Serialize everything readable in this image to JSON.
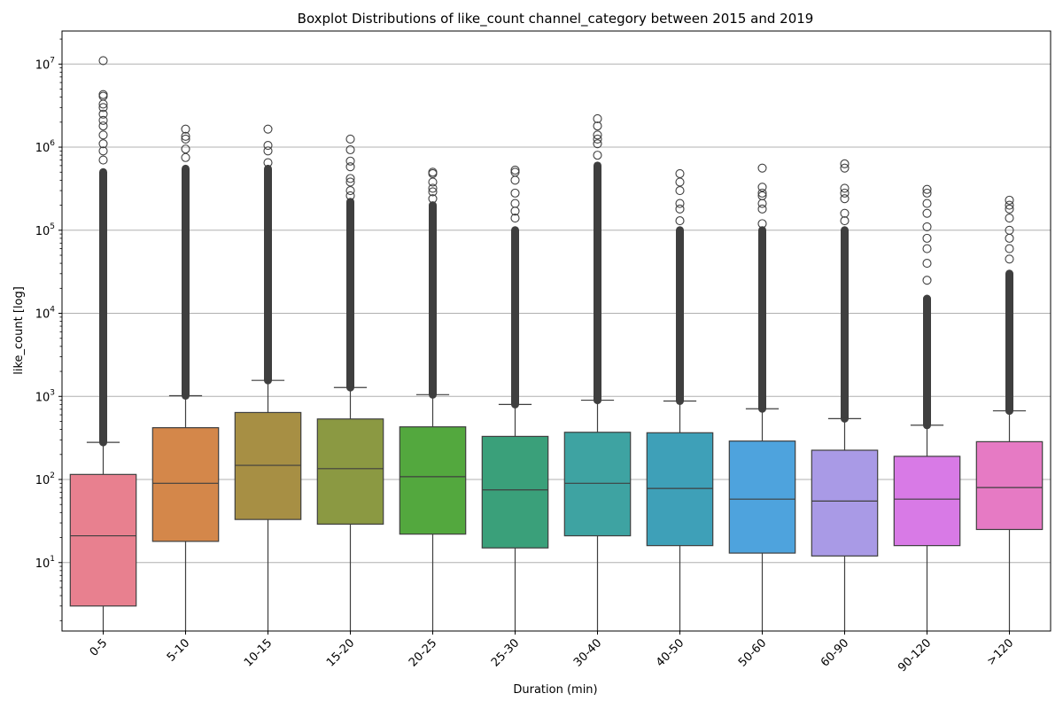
{
  "chart_data": {
    "type": "box",
    "title": "Boxplot Distributions of like_count channel_category between 2015 and 2019",
    "xlabel": "Duration (min)",
    "ylabel": "like_count [log]",
    "yscale": "log",
    "ylim": [
      1.5,
      25000000
    ],
    "grid": "y-major",
    "yticks": [
      {
        "value": 10,
        "base": "10",
        "exp": "1"
      },
      {
        "value": 100,
        "base": "10",
        "exp": "2"
      },
      {
        "value": 1000,
        "base": "10",
        "exp": "3"
      },
      {
        "value": 10000,
        "base": "10",
        "exp": "4"
      },
      {
        "value": 100000,
        "base": "10",
        "exp": "5"
      },
      {
        "value": 1000000,
        "base": "10",
        "exp": "6"
      },
      {
        "value": 10000000,
        "base": "10",
        "exp": "7"
      }
    ],
    "categories": [
      "0-5",
      "5-10",
      "10-15",
      "15-20",
      "20-25",
      "25-30",
      "30-40",
      "40-50",
      "50-60",
      "60-90",
      "90-120",
      ">120"
    ],
    "colors": [
      "#e8808f",
      "#d4874a",
      "#a78f44",
      "#8b9942",
      "#53a83e",
      "#3aa07a",
      "#3ea3a2",
      "#3ea0b8",
      "#4ea3dd",
      "#a99ae6",
      "#d87ae6",
      "#e67ac4"
    ],
    "boxes": [
      {
        "category": "0-5",
        "whislo": 1,
        "q1": 3,
        "med": 21,
        "q3": 115,
        "whishi": 280,
        "flier_min": 280,
        "flier_max": 500000,
        "outliers": [
          700000,
          900000,
          1100000,
          1400000,
          1800000,
          2100000,
          2500000,
          3000000,
          3300000,
          4100000,
          4300000,
          11000000
        ]
      },
      {
        "category": "5-10",
        "whislo": 1,
        "q1": 18,
        "med": 90,
        "q3": 420,
        "whishi": 1020,
        "flier_min": 1020,
        "flier_max": 550000,
        "outliers": [
          750000,
          950000,
          1250000,
          1350000,
          1650000
        ]
      },
      {
        "category": "10-15",
        "whislo": 1,
        "q1": 33,
        "med": 148,
        "q3": 640,
        "whishi": 1560,
        "flier_min": 1560,
        "flier_max": 550000,
        "outliers": [
          650000,
          900000,
          1050000,
          1650000
        ]
      },
      {
        "category": "15-20",
        "whislo": 1,
        "q1": 29,
        "med": 135,
        "q3": 535,
        "whishi": 1280,
        "flier_min": 1280,
        "flier_max": 220000,
        "outliers": [
          260000,
          300000,
          380000,
          420000,
          580000,
          680000,
          930000,
          1250000
        ]
      },
      {
        "category": "20-25",
        "whislo": 1,
        "q1": 22,
        "med": 108,
        "q3": 430,
        "whishi": 1050,
        "flier_min": 1050,
        "flier_max": 200000,
        "outliers": [
          240000,
          290000,
          320000,
          380000,
          480000,
          500000
        ]
      },
      {
        "category": "25-30",
        "whislo": 1,
        "q1": 15,
        "med": 75,
        "q3": 330,
        "whishi": 800,
        "flier_min": 800,
        "flier_max": 100000,
        "outliers": [
          140000,
          170000,
          210000,
          280000,
          400000,
          500000,
          530000
        ]
      },
      {
        "category": "30-40",
        "whislo": 1,
        "q1": 21,
        "med": 90,
        "q3": 370,
        "whishi": 900,
        "flier_min": 900,
        "flier_max": 600000,
        "outliers": [
          800000,
          1100000,
          1250000,
          1400000,
          1800000,
          2200000
        ]
      },
      {
        "category": "40-50",
        "whislo": 1,
        "q1": 16,
        "med": 78,
        "q3": 365,
        "whishi": 880,
        "flier_min": 880,
        "flier_max": 100000,
        "outliers": [
          130000,
          180000,
          210000,
          300000,
          380000,
          480000
        ]
      },
      {
        "category": "50-60",
        "whislo": 1,
        "q1": 13,
        "med": 58,
        "q3": 290,
        "whishi": 710,
        "flier_min": 710,
        "flier_max": 100000,
        "outliers": [
          120000,
          180000,
          210000,
          260000,
          280000,
          330000,
          560000
        ]
      },
      {
        "category": "60-90",
        "whislo": 1,
        "q1": 12,
        "med": 55,
        "q3": 225,
        "whishi": 540,
        "flier_min": 540,
        "flier_max": 100000,
        "outliers": [
          130000,
          160000,
          240000,
          280000,
          320000,
          560000,
          630000
        ]
      },
      {
        "category": "90-120",
        "whislo": 1,
        "q1": 16,
        "med": 58,
        "q3": 190,
        "whishi": 450,
        "flier_min": 450,
        "flier_max": 15000,
        "outliers": [
          25000,
          40000,
          60000,
          80000,
          110000,
          160000,
          210000,
          280000,
          310000
        ]
      },
      {
        "category": ">120",
        "whislo": 1,
        "q1": 25,
        "med": 80,
        "q3": 285,
        "whishi": 670,
        "flier_min": 670,
        "flier_max": 30000,
        "outliers": [
          45000,
          60000,
          80000,
          100000,
          140000,
          180000,
          200000,
          230000
        ]
      }
    ]
  }
}
